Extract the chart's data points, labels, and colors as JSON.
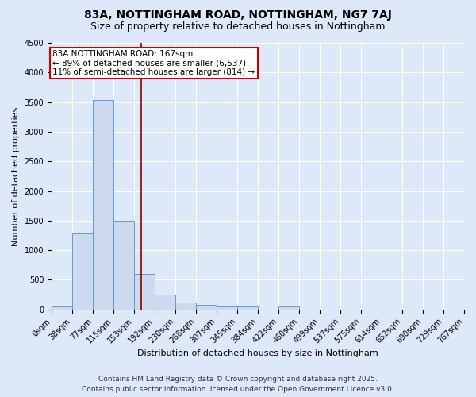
{
  "title": "83A, NOTTINGHAM ROAD, NOTTINGHAM, NG7 7AJ",
  "subtitle": "Size of property relative to detached houses in Nottingham",
  "xlabel": "Distribution of detached houses by size in Nottingham",
  "ylabel": "Number of detached properties",
  "bar_values": [
    50,
    1280,
    3530,
    1500,
    600,
    250,
    120,
    75,
    50,
    50,
    0,
    50,
    0,
    0,
    0,
    0,
    0,
    0,
    0,
    0
  ],
  "bin_labels": [
    "0sqm",
    "38sqm",
    "77sqm",
    "115sqm",
    "153sqm",
    "192sqm",
    "230sqm",
    "268sqm",
    "307sqm",
    "345sqm",
    "384sqm",
    "422sqm",
    "460sqm",
    "499sqm",
    "537sqm",
    "575sqm",
    "614sqm",
    "652sqm",
    "690sqm",
    "729sqm",
    "767sqm"
  ],
  "bar_color": "#ccd9ee",
  "bar_edge_color": "#6699cc",
  "ylim": [
    0,
    4500
  ],
  "yticks": [
    0,
    500,
    1000,
    1500,
    2000,
    2500,
    3000,
    3500,
    4000,
    4500
  ],
  "property_line_x": 167,
  "property_line_color": "#8b0000",
  "annotation_line1": "83A NOTTINGHAM ROAD: 167sqm",
  "annotation_line2": "← 89% of detached houses are smaller (6,537)",
  "annotation_line3": "11% of semi-detached houses are larger (814) →",
  "annotation_box_color": "#ffffff",
  "annotation_box_edge_color": "#cc0000",
  "bin_edges": [
    0,
    38,
    77,
    115,
    153,
    192,
    230,
    268,
    307,
    345,
    384,
    422,
    460,
    499,
    537,
    575,
    614,
    652,
    690,
    729,
    767
  ],
  "footer_line1": "Contains HM Land Registry data © Crown copyright and database right 2025.",
  "footer_line2": "Contains public sector information licensed under the Open Government Licence v3.0.",
  "bg_color": "#dde8f8",
  "plot_bg_color": "#dde8f8",
  "grid_color": "#ffffff",
  "title_fontsize": 10,
  "subtitle_fontsize": 9,
  "axis_label_fontsize": 8,
  "tick_fontsize": 7,
  "annotation_fontsize": 7.5,
  "footer_fontsize": 6.5
}
